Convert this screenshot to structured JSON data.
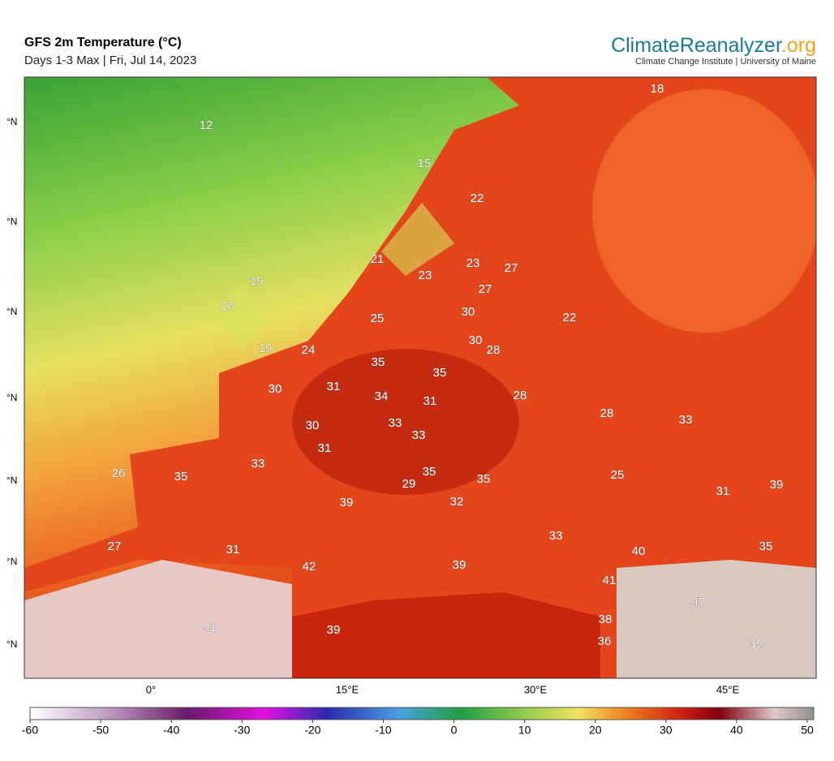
{
  "header": {
    "title": "GFS 2m Temperature (°C)",
    "subtitle": "Days 1-3 Max | Fri, Jul 14, 2023",
    "brand_main": "ClimateReanalyzer",
    "brand_suffix": ".org",
    "institute": "Climate Change Institute | University of Maine"
  },
  "map": {
    "lat_labels": [
      "°N",
      "°N",
      "°N",
      "°N",
      "°N",
      "°N",
      "°N"
    ],
    "lon_labels": [
      "0°",
      "15°E",
      "30°E",
      "45°E"
    ],
    "temperatures": [
      18,
      12,
      15,
      22,
      21,
      23,
      23,
      27,
      15,
      27,
      16,
      30,
      25,
      22,
      30,
      28,
      19,
      24,
      35,
      35,
      30,
      31,
      34,
      31,
      28,
      28,
      33,
      30,
      33,
      33,
      31,
      33,
      26,
      35,
      35,
      35,
      25,
      29,
      31,
      39,
      39,
      32,
      33,
      27,
      31,
      35,
      40,
      42,
      39,
      41,
      47,
      41,
      39,
      38,
      36,
      39
    ]
  },
  "colorbar": {
    "range": [
      -60,
      50
    ],
    "ticks": [
      -60,
      -50,
      -40,
      -30,
      -20,
      -10,
      0,
      10,
      20,
      30,
      40,
      50
    ]
  }
}
